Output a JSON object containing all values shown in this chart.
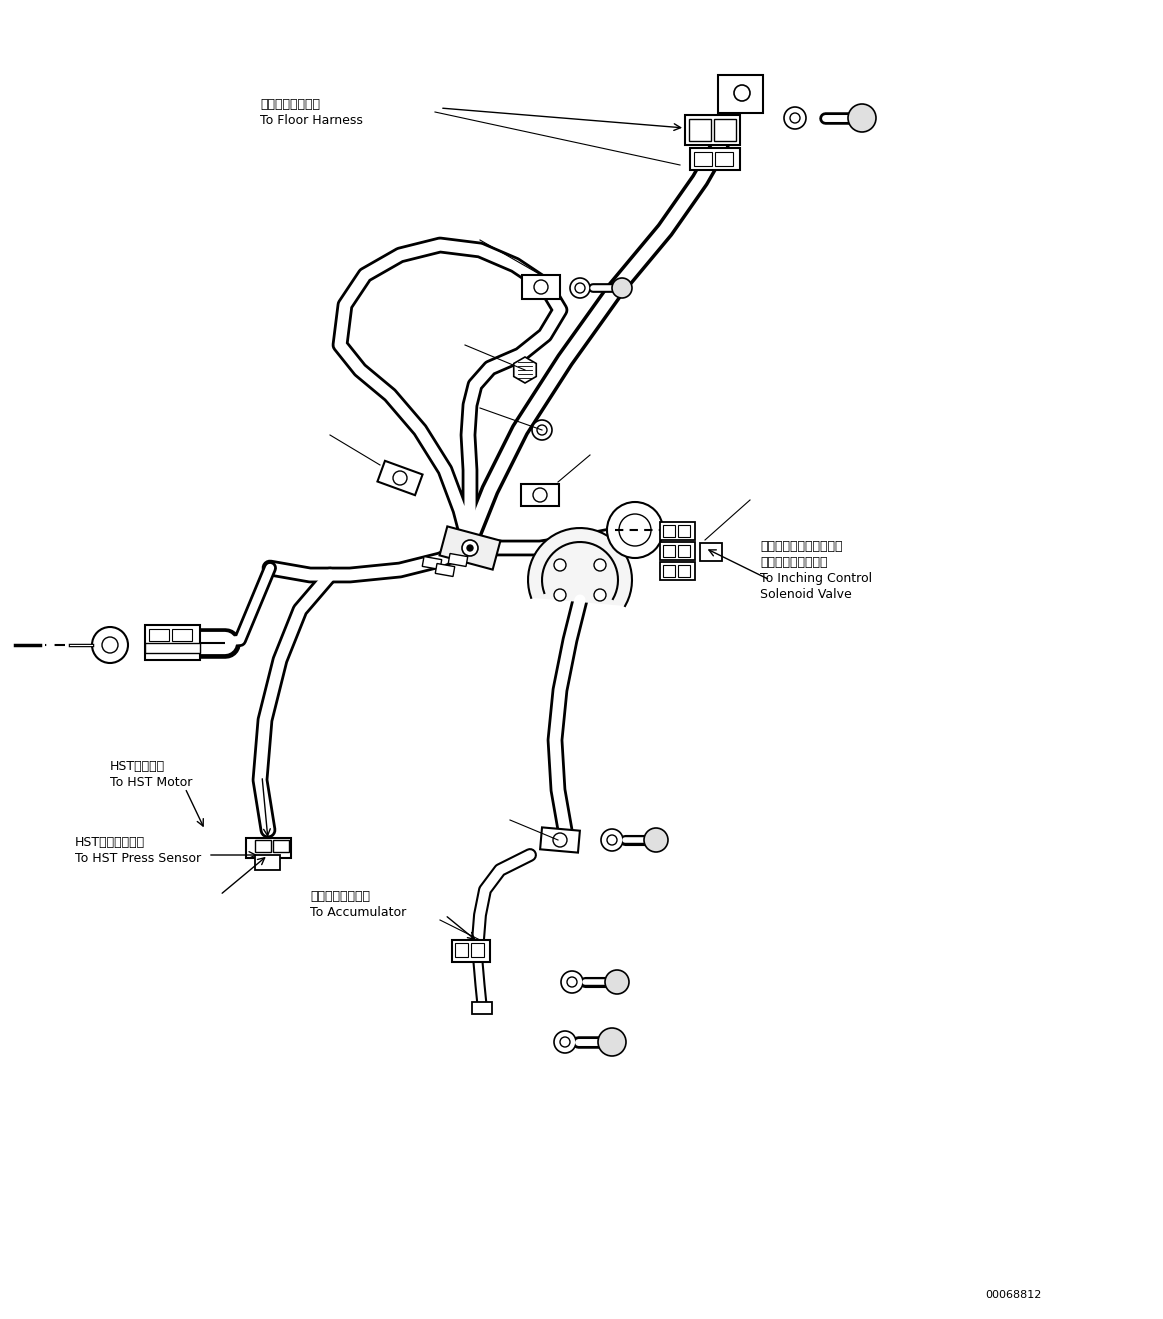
{
  "background_color": "#ffffff",
  "line_color": "#000000",
  "fig_width": 11.63,
  "fig_height": 13.19,
  "dpi": 100,
  "part_number": "00068812",
  "label_floor_harness_jp": "フロアハーネスへ",
  "label_floor_harness_en": "To Floor Harness",
  "label_inching_jp1": "インチングコントロール",
  "label_inching_jp2": "ソレノイドバルブへ",
  "label_inching_en1": "To Inching Control",
  "label_inching_en2": "Solenoid Valve",
  "label_hst_motor_jp": "HSTモータへ",
  "label_hst_motor_en": "To HST Motor",
  "label_hst_press_jp": "HST油圧センサへ",
  "label_hst_press_en": "To HST Press Sensor",
  "label_accum_jp": "アキュムレータへ",
  "label_accum_en": "To Accumulator"
}
